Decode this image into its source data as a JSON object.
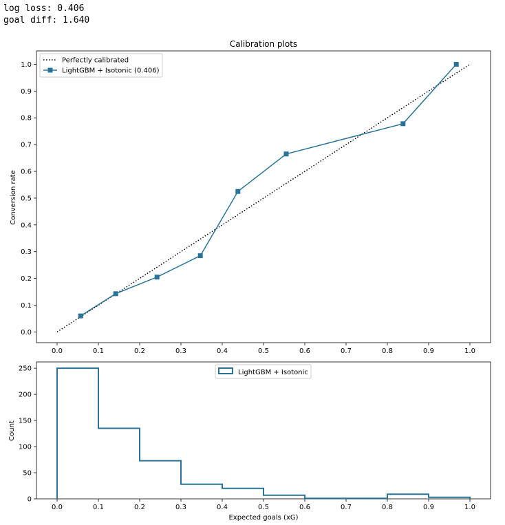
{
  "stats": {
    "log_loss": "log loss: 0.406",
    "goal_diff": "goal diff: 1.640"
  },
  "colors": {
    "series": "#2a7398",
    "reference": "#000000"
  },
  "chart_data": [
    {
      "type": "line",
      "title": "Calibration plots",
      "xlabel": "",
      "ylabel": "Conversion rate",
      "xlim": [
        -0.05,
        1.05
      ],
      "ylim": [
        -0.04,
        1.05
      ],
      "xticks": [
        "0.0",
        "0.1",
        "0.2",
        "0.3",
        "0.4",
        "0.5",
        "0.6",
        "0.7",
        "0.8",
        "0.9",
        "1.0"
      ],
      "yticks": [
        "0.0",
        "0.1",
        "0.2",
        "0.3",
        "0.4",
        "0.5",
        "0.6",
        "0.7",
        "0.8",
        "0.9",
        "1.0"
      ],
      "grid": false,
      "legend_position": "top-left",
      "series": [
        {
          "name": "Perfectly calibrated",
          "style": "dotted",
          "x": [
            0.0,
            1.0
          ],
          "y": [
            0.0,
            1.0
          ]
        },
        {
          "name": "LightGBM + Isotonic (0.406)",
          "style": "line-square-markers",
          "x": [
            0.057,
            0.142,
            0.242,
            0.347,
            0.438,
            0.555,
            0.838,
            0.967
          ],
          "y": [
            0.06,
            0.143,
            0.205,
            0.285,
            0.525,
            0.665,
            0.778,
            1.0
          ]
        }
      ]
    },
    {
      "type": "bar",
      "histogram": true,
      "title": "",
      "xlabel": "Expected goals (xG)",
      "ylabel": "Count",
      "xlim": [
        -0.05,
        1.05
      ],
      "ylim": [
        0,
        262
      ],
      "xticks": [
        "0.0",
        "0.1",
        "0.2",
        "0.3",
        "0.4",
        "0.5",
        "0.6",
        "0.7",
        "0.8",
        "0.9",
        "1.0"
      ],
      "yticks": [
        "0",
        "50",
        "100",
        "150",
        "200",
        "250"
      ],
      "grid": false,
      "legend_position": "top-center",
      "bin_edges": [
        0.0,
        0.1,
        0.2,
        0.3,
        0.4,
        0.5,
        0.6,
        0.7,
        0.8,
        0.9,
        1.0
      ],
      "series": [
        {
          "name": "LightGBM + Isotonic",
          "values": [
            250,
            135,
            73,
            28,
            20,
            7,
            1,
            1,
            9,
            3
          ]
        }
      ]
    }
  ]
}
